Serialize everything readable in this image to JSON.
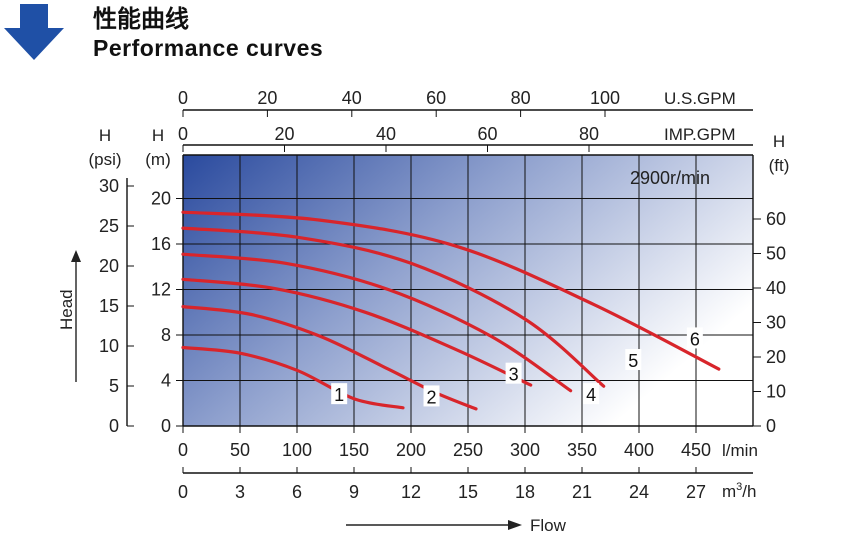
{
  "header": {
    "title_cn": "性能曲线",
    "title_en": "Performance curves"
  },
  "chart_data": {
    "type": "line",
    "speed_label": "2900r/min",
    "flow_label": "Flow",
    "head_label": "Head",
    "grid": true,
    "axes": {
      "lpm": {
        "unit": "l/min",
        "ticks": [
          "0",
          "50",
          "100",
          "150",
          "200",
          "250",
          "300",
          "350",
          "400",
          "450"
        ],
        "range": [
          0,
          500
        ]
      },
      "m3h": {
        "unit": "m³/h",
        "unit_base": "m",
        "unit_sup": "3",
        "unit_suffix": "/h",
        "ticks": [
          "0",
          "3",
          "6",
          "9",
          "12",
          "15",
          "18",
          "21",
          "24",
          "27"
        ]
      },
      "imp_gpm": {
        "unit": "IMP.GPM",
        "ticks": [
          "0",
          "20",
          "40",
          "60",
          "80"
        ]
      },
      "us_gpm": {
        "unit": "U.S.GPM",
        "ticks": [
          "0",
          "20",
          "40",
          "60",
          "80",
          "100"
        ]
      },
      "head_m": {
        "unit_top": "H",
        "unit_bottom": "(m)",
        "ticks": [
          "0",
          "4",
          "8",
          "12",
          "16",
          "20"
        ],
        "range": [
          0,
          24
        ]
      },
      "head_psi": {
        "unit_top": "H",
        "unit_bottom": "(psi)",
        "ticks": [
          "0",
          "5",
          "10",
          "15",
          "20",
          "25",
          "30"
        ]
      },
      "head_ft": {
        "unit_top": "H",
        "unit_bottom": "(ft)",
        "ticks": [
          "0",
          "10",
          "20",
          "30",
          "40",
          "50",
          "60"
        ]
      }
    },
    "series": [
      {
        "name": "1",
        "points": [
          [
            0,
            6.9
          ],
          [
            50,
            6.4
          ],
          [
            100,
            4.9
          ],
          [
            150,
            2.4
          ],
          [
            193,
            1.6
          ]
        ]
      },
      {
        "name": "2",
        "points": [
          [
            0,
            10.5
          ],
          [
            60,
            9.8
          ],
          [
            120,
            7.9
          ],
          [
            180,
            5.0
          ],
          [
            220,
            3.0
          ],
          [
            257,
            1.5
          ]
        ]
      },
      {
        "name": "3",
        "points": [
          [
            0,
            12.9
          ],
          [
            80,
            12.1
          ],
          [
            160,
            10.0
          ],
          [
            240,
            6.7
          ],
          [
            305,
            3.6
          ]
        ]
      },
      {
        "name": "4",
        "points": [
          [
            0,
            15.1
          ],
          [
            90,
            14.3
          ],
          [
            180,
            12.0
          ],
          [
            270,
            7.9
          ],
          [
            340,
            3.1
          ]
        ]
      },
      {
        "name": "5",
        "points": [
          [
            0,
            17.4
          ],
          [
            100,
            16.6
          ],
          [
            200,
            14.3
          ],
          [
            300,
            9.4
          ],
          [
            369,
            3.5
          ]
        ]
      },
      {
        "name": "6",
        "points": [
          [
            0,
            18.8
          ],
          [
            120,
            18.1
          ],
          [
            240,
            15.8
          ],
          [
            360,
            10.7
          ],
          [
            470,
            5.0
          ]
        ]
      }
    ],
    "colors": {
      "curve": "#d8252b",
      "arrow": "#1f50a6",
      "grid": "#111111",
      "fill_dark": "#2a4a9e",
      "fill_light": "#ffffff"
    }
  }
}
